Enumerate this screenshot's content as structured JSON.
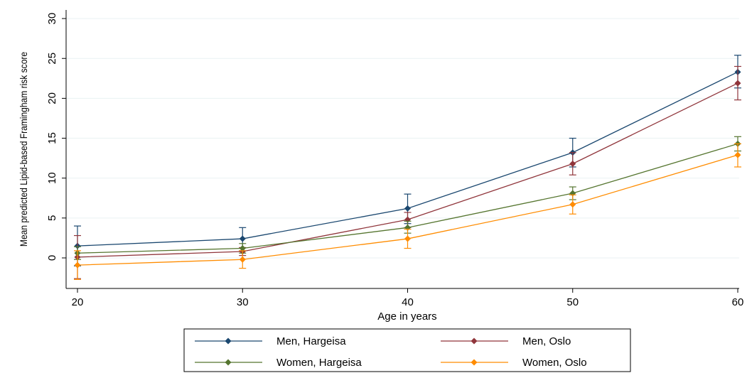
{
  "chart_data": {
    "type": "line",
    "xlabel": "Age in years",
    "ylabel": "Mean predicted Lipid-based Framingham risk score",
    "x": [
      20,
      30,
      40,
      50,
      60
    ],
    "xlim": [
      20,
      60
    ],
    "ylim": [
      -3.5,
      30
    ],
    "xticks": [
      "20",
      "30",
      "40",
      "50",
      "60"
    ],
    "yticks": [
      "0",
      "5",
      "10",
      "15",
      "20",
      "25",
      "30"
    ],
    "grid": "horizontal",
    "legend_position": "bottom",
    "series": [
      {
        "name": "Men, Hargeisa",
        "color": "#1a476f",
        "values": [
          1.5,
          2.4,
          6.2,
          13.2,
          23.3
        ],
        "ci_low": [
          -1.0,
          0.9,
          4.3,
          11.4,
          21.3
        ],
        "ci_high": [
          4.0,
          3.8,
          8.0,
          15.0,
          25.4
        ]
      },
      {
        "name": "Men, Oslo",
        "color": "#90353b",
        "values": [
          0.1,
          0.8,
          4.8,
          11.8,
          21.9
        ],
        "ci_low": [
          -2.6,
          0.3,
          3.8,
          10.4,
          19.8
        ],
        "ci_high": [
          2.8,
          1.3,
          5.7,
          13.2,
          24.0
        ]
      },
      {
        "name": "Women, Hargeisa",
        "color": "#55752f",
        "values": [
          0.6,
          1.2,
          3.8,
          8.1,
          14.3
        ],
        "ci_low": [
          -0.2,
          0.6,
          3.1,
          7.3,
          13.4
        ],
        "ci_high": [
          1.4,
          1.8,
          4.6,
          8.9,
          15.2
        ]
      },
      {
        "name": "Women, Oslo",
        "color": "#ff8c00",
        "values": [
          -0.9,
          -0.2,
          2.4,
          6.7,
          12.9
        ],
        "ci_low": [
          -2.7,
          -1.3,
          1.2,
          5.5,
          11.4
        ],
        "ci_high": [
          0.9,
          0.9,
          3.6,
          7.9,
          14.3
        ]
      }
    ]
  }
}
